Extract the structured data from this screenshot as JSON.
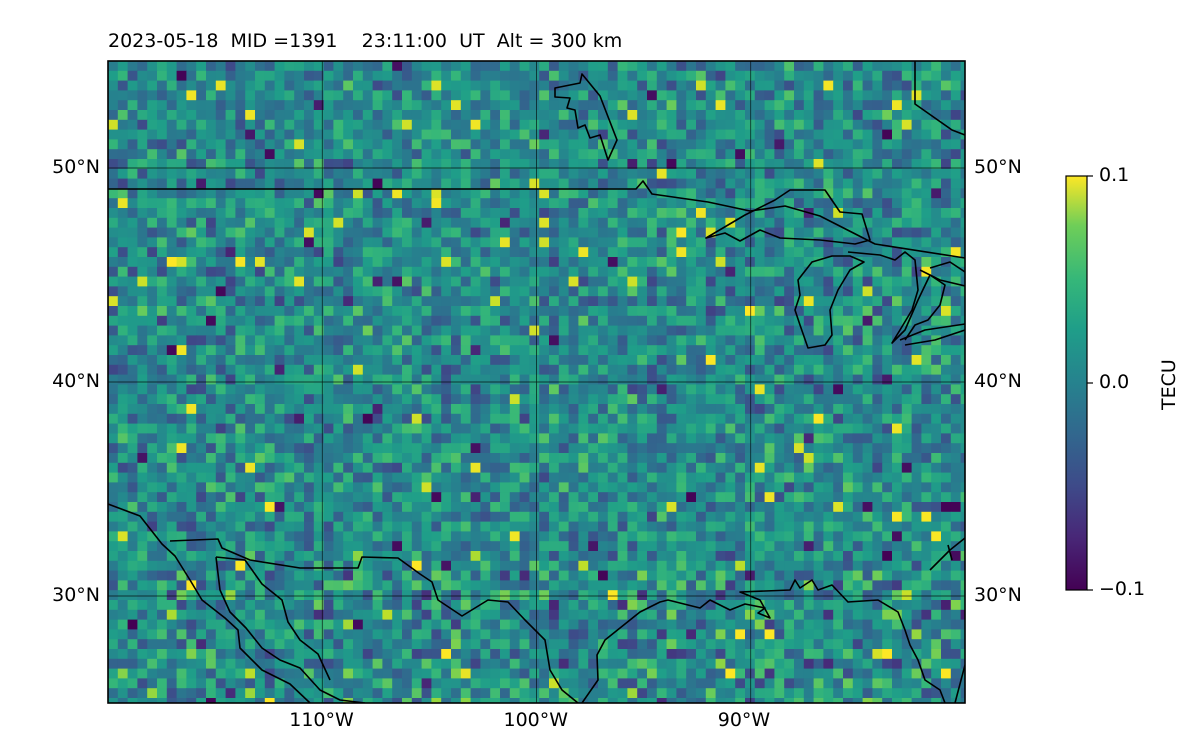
{
  "title": {
    "date": "2023-05-18",
    "mid": "MID =1391",
    "time": "23:11:00",
    "ut": "UT",
    "alt": "Alt = 300 km"
  },
  "map": {
    "type": "heatmap",
    "lon_range": [
      -120,
      -80
    ],
    "lat_range": [
      25,
      55
    ],
    "gridlines": true,
    "lat_ticks": [
      {
        "value": 50,
        "label": "50°N"
      },
      {
        "value": 40,
        "label": "40°N"
      },
      {
        "value": 30,
        "label": "30°N"
      }
    ],
    "lon_ticks": [
      {
        "value": -110,
        "label": "110°W"
      },
      {
        "value": -100,
        "label": "100°W"
      },
      {
        "value": -90,
        "label": "90°W"
      }
    ],
    "colormap": "viridis",
    "colors": {
      "viridis_min": "#440154",
      "viridis_mid": "#21908d",
      "viridis_max": "#fde725",
      "coast": "#000000",
      "grid": "#000000"
    }
  },
  "colorbar": {
    "label": "TECU",
    "min": -0.1,
    "max": 0.1,
    "ticks": [
      {
        "value": 0.1,
        "label": "0.1"
      },
      {
        "value": 0.0,
        "label": "0.0"
      },
      {
        "value": -0.1,
        "label": "−0.1"
      }
    ]
  }
}
